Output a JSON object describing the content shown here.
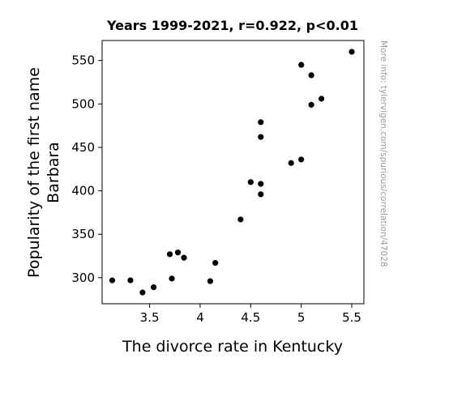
{
  "chart_data": {
    "type": "scatter",
    "title": "Years 1999-2021, r=0.922, p<0.01",
    "xlabel": "The divorce rate in Kentucky",
    "ylabel_lines": [
      "Popularity of the first name",
      "Barbara"
    ],
    "xlim": [
      3.03,
      5.62
    ],
    "ylim": [
      270,
      573
    ],
    "xticks": [
      3.5,
      4,
      4.5,
      5,
      5.5
    ],
    "xtick_labels": [
      "3.5",
      "4",
      "4.5",
      "5",
      "5.5"
    ],
    "yticks": [
      300,
      350,
      400,
      450,
      500,
      550
    ],
    "ytick_labels": [
      "300",
      "350",
      "400",
      "450",
      "500",
      "550"
    ],
    "grid": false,
    "watermark": "More info: tylervigen.com/spurious/correlation/47028",
    "marker_color": "#000000",
    "points": [
      {
        "x": 3.13,
        "y": 297
      },
      {
        "x": 3.31,
        "y": 297
      },
      {
        "x": 3.43,
        "y": 283
      },
      {
        "x": 3.54,
        "y": 289
      },
      {
        "x": 3.7,
        "y": 327
      },
      {
        "x": 3.72,
        "y": 299
      },
      {
        "x": 3.78,
        "y": 329
      },
      {
        "x": 3.84,
        "y": 323
      },
      {
        "x": 4.1,
        "y": 296
      },
      {
        "x": 4.15,
        "y": 317
      },
      {
        "x": 4.4,
        "y": 367
      },
      {
        "x": 4.5,
        "y": 410
      },
      {
        "x": 4.6,
        "y": 396
      },
      {
        "x": 4.6,
        "y": 408
      },
      {
        "x": 4.6,
        "y": 462
      },
      {
        "x": 4.6,
        "y": 479
      },
      {
        "x": 4.9,
        "y": 432
      },
      {
        "x": 5.0,
        "y": 436
      },
      {
        "x": 5.0,
        "y": 545
      },
      {
        "x": 5.1,
        "y": 499
      },
      {
        "x": 5.1,
        "y": 533
      },
      {
        "x": 5.2,
        "y": 506
      },
      {
        "x": 5.5,
        "y": 560
      }
    ]
  }
}
